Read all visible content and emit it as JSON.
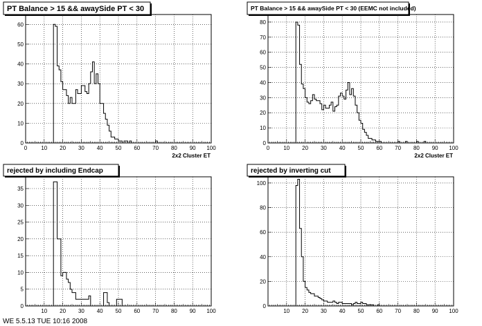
{
  "footer_text": "WE 5.5.13 TUE 10:16 2008",
  "chart_data": [
    {
      "type": "bar",
      "title": "PT Balance > 15 && awaySide PT < 30",
      "xlabel": "2x2 Cluster ET",
      "ylabel": "",
      "xlim": [
        0,
        100
      ],
      "ylim": [
        0,
        65
      ],
      "xticks": [
        0,
        10,
        20,
        30,
        40,
        50,
        60,
        70,
        80,
        90,
        100
      ],
      "yticks": [
        0,
        10,
        20,
        30,
        40,
        50,
        60
      ],
      "grid": true,
      "bin_width": 1,
      "x": [
        15,
        16,
        17,
        18,
        19,
        20,
        21,
        22,
        23,
        24,
        25,
        26,
        27,
        28,
        29,
        30,
        31,
        32,
        33,
        34,
        35,
        36,
        37,
        38,
        39,
        40,
        41,
        42,
        43,
        44,
        45,
        46,
        47,
        48,
        49,
        50,
        51,
        52,
        53,
        54,
        55,
        56,
        57,
        58,
        59,
        60,
        61,
        62,
        63,
        64,
        65,
        66,
        67,
        68,
        69,
        70,
        71,
        72,
        73
      ],
      "values": [
        60,
        59,
        39,
        37,
        31,
        27,
        27,
        24,
        20,
        23,
        20,
        20,
        27,
        25,
        25,
        29,
        29,
        26,
        25,
        30,
        36,
        41,
        30,
        35,
        30,
        20,
        20,
        15,
        12,
        9,
        6,
        3,
        3,
        2,
        2,
        1,
        1,
        0,
        1,
        1,
        0,
        1,
        0,
        0,
        0,
        0,
        0,
        0,
        0,
        0,
        0,
        0,
        0,
        0,
        0,
        1,
        0,
        0,
        0
      ]
    },
    {
      "type": "bar",
      "title": "PT Balance > 15 && awaySide PT < 30 (EEMC not included)",
      "xlabel": "2x2 Cluster ET",
      "ylabel": "",
      "xlim": [
        0,
        100
      ],
      "ylim": [
        0,
        85
      ],
      "xticks": [
        0,
        10,
        20,
        30,
        40,
        50,
        60,
        70,
        80,
        90,
        100
      ],
      "yticks": [
        0,
        10,
        20,
        30,
        40,
        50,
        60,
        70,
        80
      ],
      "grid": true,
      "bin_width": 1,
      "x": [
        15,
        16,
        17,
        18,
        19,
        20,
        21,
        22,
        23,
        24,
        25,
        26,
        27,
        28,
        29,
        30,
        31,
        32,
        33,
        34,
        35,
        36,
        37,
        38,
        39,
        40,
        41,
        42,
        43,
        44,
        45,
        46,
        47,
        48,
        49,
        50,
        51,
        52,
        53,
        54,
        55,
        56,
        57,
        58,
        59,
        60,
        61,
        62,
        63,
        64,
        65,
        66,
        67,
        68,
        69,
        70,
        71,
        72,
        73,
        74,
        75,
        76,
        77,
        78,
        79,
        80,
        81,
        82,
        83,
        84
      ],
      "values": [
        80,
        78,
        52,
        39,
        36,
        30,
        27,
        26,
        28,
        32,
        29,
        28,
        28,
        26,
        22,
        25,
        23,
        23,
        25,
        27,
        21,
        24,
        25,
        31,
        33,
        31,
        29,
        35,
        40,
        32,
        36,
        31,
        25,
        20,
        15,
        13,
        9,
        7,
        5,
        3,
        3,
        2,
        2,
        1,
        1,
        1,
        0,
        0,
        0,
        0,
        0,
        0,
        0,
        0,
        0,
        1,
        0,
        0,
        0,
        1,
        0,
        0,
        0,
        0,
        0,
        1,
        0,
        0,
        0,
        1
      ]
    },
    {
      "type": "bar",
      "title": "rejected by including Endcap",
      "xlabel": "",
      "ylabel": "",
      "xlim": [
        0,
        100
      ],
      "ylim": [
        0,
        38.5
      ],
      "xticks": [
        10,
        20,
        30,
        40,
        50,
        60,
        70,
        80,
        90,
        100
      ],
      "yticks": [
        0,
        5,
        10,
        15,
        20,
        25,
        30,
        35
      ],
      "grid": true,
      "bin_width": 1,
      "x": [
        15,
        16,
        17,
        18,
        19,
        20,
        21,
        22,
        23,
        24,
        25,
        26,
        27,
        28,
        29,
        30,
        31,
        32,
        33,
        34,
        35,
        36,
        37,
        38,
        39,
        40,
        41,
        42,
        43,
        44,
        45,
        46,
        47,
        48,
        49,
        50,
        51,
        52
      ],
      "values": [
        37,
        37,
        20,
        20,
        9,
        10,
        10,
        8,
        7,
        5,
        4,
        4,
        2,
        2,
        2,
        2,
        2,
        2,
        2,
        3,
        0,
        0,
        0,
        0,
        0,
        0,
        0,
        4,
        4,
        1,
        0,
        0,
        0,
        0,
        2,
        2,
        2,
        0
      ]
    },
    {
      "type": "bar",
      "title": "rejected by inverting  cut",
      "xlabel": "",
      "ylabel": "",
      "xlim": [
        0,
        100
      ],
      "ylim": [
        0,
        105
      ],
      "xticks": [
        10,
        20,
        30,
        40,
        50,
        60,
        70,
        80,
        90,
        100
      ],
      "yticks": [
        0,
        20,
        40,
        60,
        80,
        100
      ],
      "grid": true,
      "bin_width": 1,
      "x": [
        15,
        16,
        17,
        18,
        19,
        20,
        21,
        22,
        23,
        24,
        25,
        26,
        27,
        28,
        29,
        30,
        31,
        32,
        33,
        34,
        35,
        36,
        37,
        38,
        39,
        40,
        41,
        42,
        43,
        44,
        45,
        46,
        47,
        48,
        49,
        50,
        51,
        52,
        53,
        54,
        55,
        56,
        57,
        58,
        59,
        60
      ],
      "values": [
        98,
        103,
        63,
        40,
        20,
        15,
        13,
        11,
        10,
        10,
        8,
        8,
        7,
        6,
        5,
        4,
        4,
        3,
        3,
        3,
        4,
        3,
        2,
        3,
        3,
        2,
        2,
        2,
        2,
        2,
        1,
        2,
        3,
        2,
        2,
        3,
        2,
        2,
        1,
        1,
        1,
        1,
        0,
        0,
        1,
        0
      ]
    }
  ]
}
